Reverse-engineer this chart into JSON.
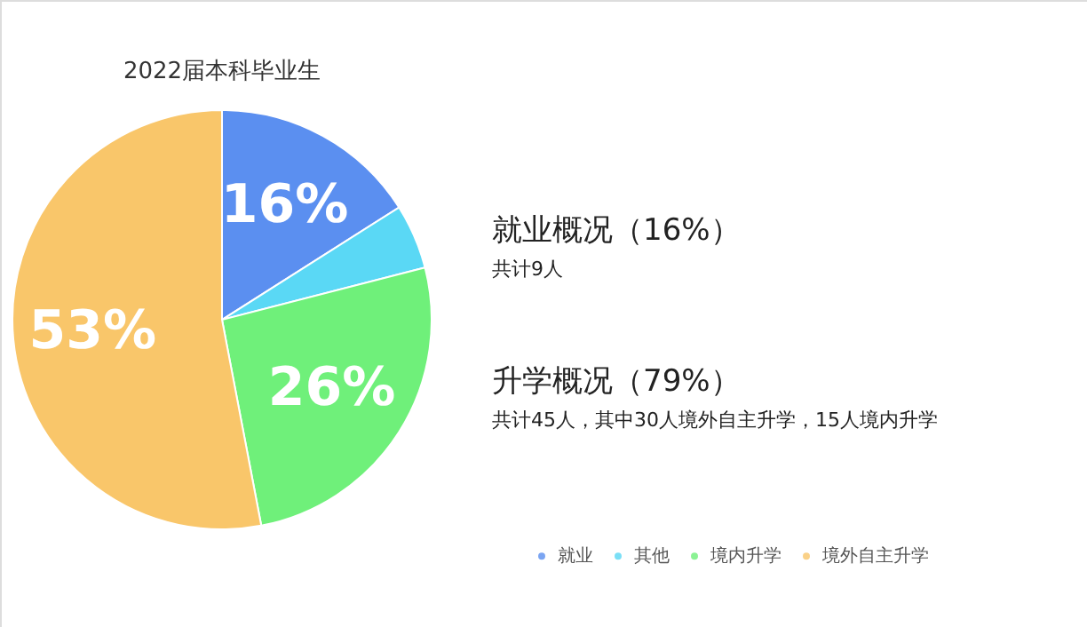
{
  "chart_data": {
    "type": "pie",
    "title": "2022届本科毕业生",
    "categories": [
      "就业",
      "其他",
      "境内升学",
      "境外自主升学"
    ],
    "values": [
      16,
      5,
      26,
      53
    ],
    "colors": [
      "#5b8ff0",
      "#5ad8f5",
      "#6ff07a",
      "#f9c66a"
    ],
    "value_labels": [
      "16%",
      null,
      "26%",
      "53%"
    ],
    "legend": "bottom",
    "annotations": [
      "就业概况（16%）",
      "共计9人",
      "升学概况（79%）",
      "共计45人，其中30人境外自主升学，15人境内升学"
    ]
  }
}
